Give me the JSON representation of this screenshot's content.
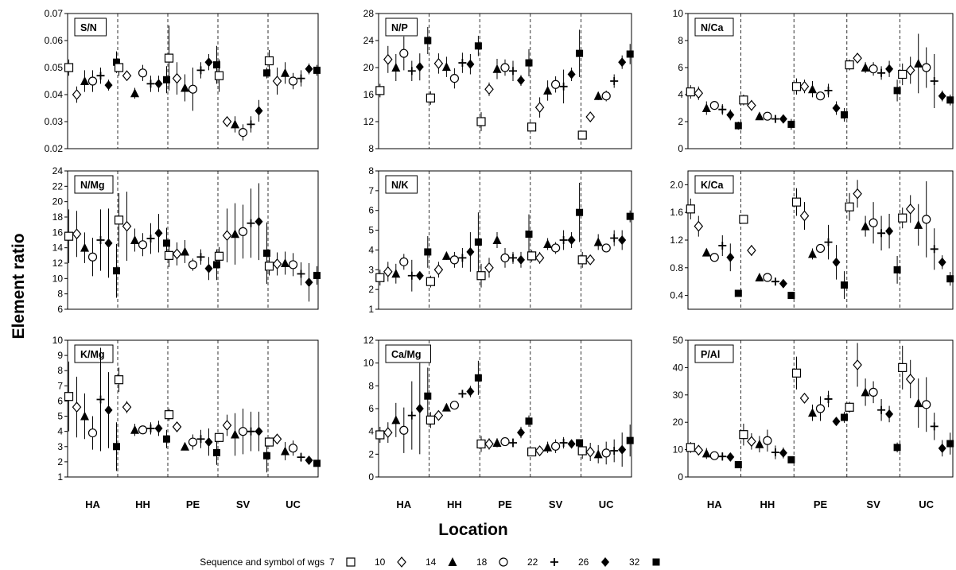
{
  "figure": {
    "ylabel": "Element ratio",
    "xlabel": "Location",
    "legend_title": "Sequence and symbol of wgs"
  },
  "legend": [
    {
      "label": "7",
      "marker": "square-open"
    },
    {
      "label": "10",
      "marker": "diamond-open"
    },
    {
      "label": "14",
      "marker": "triangle-filled"
    },
    {
      "label": "18",
      "marker": "circle-open"
    },
    {
      "label": "22",
      "marker": "plus"
    },
    {
      "label": "26",
      "marker": "diamond-filled"
    },
    {
      "label": "32",
      "marker": "square-filled"
    }
  ],
  "chart_data": [
    {
      "type": "scatter",
      "title": "S/N",
      "categories": [
        "HA",
        "HH",
        "PE",
        "SV",
        "UC"
      ],
      "ylim": [
        0.02,
        0.07
      ],
      "yticks": [
        "0.02",
        "0.03",
        "0.04",
        "0.05",
        "0.06",
        "0.07"
      ],
      "show_xlabels": false,
      "values": [
        [
          0.05,
          0.04,
          0.045,
          0.045,
          0.047,
          0.0435,
          0.052
        ],
        [
          0.05,
          0.047,
          0.0405,
          0.048,
          0.044,
          0.044,
          0.0455
        ],
        [
          0.0535,
          0.046,
          0.0425,
          0.042,
          0.049,
          0.052,
          0.051
        ],
        [
          0.047,
          0.03,
          0.029,
          0.026,
          0.029,
          0.034,
          0.048
        ],
        [
          0.0525,
          0.045,
          0.048,
          0.045,
          0.046,
          0.0495,
          0.049
        ]
      ],
      "errors": [
        [
          0.003,
          0.003,
          0.004,
          0.004,
          0.003,
          0.002,
          0.004
        ],
        [
          0.003,
          0.001,
          0.002,
          0.003,
          0.003,
          0.003,
          0.005
        ],
        [
          0.012,
          0.006,
          0.005,
          0.008,
          0.003,
          0.003,
          0.007
        ],
        [
          0.006,
          0.002,
          0.003,
          0.003,
          0.003,
          0.004,
          0.002
        ],
        [
          0.004,
          0.005,
          0.004,
          0.003,
          0.003,
          0.002,
          0.002
        ]
      ]
    },
    {
      "type": "scatter",
      "title": "N/P",
      "categories": [
        "HA",
        "HH",
        "PE",
        "SV",
        "UC"
      ],
      "ylim": [
        8,
        28
      ],
      "yticks": [
        "8",
        "12",
        "16",
        "20",
        "24",
        "28"
      ],
      "show_xlabels": false,
      "values": [
        [
          16.6,
          21.2,
          20.0,
          22.1,
          19.5,
          20.1,
          24.0
        ],
        [
          15.5,
          20.6,
          20.1,
          18.4,
          20.7,
          20.5,
          23.2
        ],
        [
          12.0,
          16.8,
          19.8,
          20.0,
          19.5,
          18.1,
          20.7
        ],
        [
          11.2,
          14.1,
          16.6,
          17.5,
          17.2,
          19.0,
          22.1
        ],
        [
          10.0,
          12.7,
          15.8,
          15.8,
          18.0,
          20.8,
          22.0
        ]
      ],
      "errors": [
        [
          1,
          2,
          2,
          2.5,
          1.5,
          2,
          2
        ],
        [
          1,
          1.5,
          1.5,
          1.5,
          1.5,
          1.5,
          1.5
        ],
        [
          1.4,
          1,
          1.5,
          1.2,
          1.5,
          0.8,
          2
        ],
        [
          0.5,
          1.5,
          1.5,
          1.2,
          2.5,
          1,
          3.5
        ],
        [
          0.5,
          0.5,
          0.6,
          0.8,
          1,
          1,
          1.5
        ]
      ]
    },
    {
      "type": "scatter",
      "title": "N/Ca",
      "categories": [
        "HA",
        "HH",
        "PE",
        "SV",
        "UC"
      ],
      "ylim": [
        0,
        10
      ],
      "yticks": [
        "0",
        "2",
        "4",
        "6",
        "8",
        "10"
      ],
      "show_xlabels": false,
      "values": [
        [
          4.2,
          4.1,
          3.0,
          3.2,
          2.9,
          2.5,
          1.7
        ],
        [
          3.6,
          3.2,
          2.4,
          2.4,
          2.2,
          2.2,
          1.8
        ],
        [
          4.6,
          4.6,
          4.4,
          3.9,
          4.3,
          3.0,
          2.5
        ],
        [
          6.2,
          6.7,
          6.0,
          5.9,
          5.6,
          5.9,
          4.3
        ],
        [
          5.5,
          5.8,
          6.3,
          6.0,
          5.0,
          3.9,
          3.6
        ]
      ],
      "errors": [
        [
          0.5,
          0.5,
          0.5,
          0.3,
          0.4,
          0.4,
          0.3
        ],
        [
          0.4,
          0.4,
          0.2,
          0.2,
          0.2,
          0.2,
          0.4
        ],
        [
          0.6,
          0.5,
          0.6,
          0.3,
          0.5,
          0.5,
          0.5
        ],
        [
          0.4,
          0.2,
          0.4,
          0.5,
          0.5,
          0.6,
          0.8
        ],
        [
          0.8,
          1.0,
          2.2,
          1.5,
          2.0,
          0.4,
          0.4
        ]
      ]
    },
    {
      "type": "scatter",
      "title": "N/Mg",
      "categories": [
        "HA",
        "HH",
        "PE",
        "SV",
        "UC"
      ],
      "ylim": [
        6,
        24
      ],
      "yticks": [
        "6",
        "8",
        "10",
        "12",
        "14",
        "16",
        "18",
        "20",
        "22",
        "24"
      ],
      "show_xlabels": false,
      "values": [
        [
          15.5,
          15.8,
          14.0,
          12.8,
          15.0,
          14.6,
          11.0
        ],
        [
          17.6,
          16.8,
          15.0,
          14.4,
          15.2,
          15.9,
          14.6
        ],
        [
          13.0,
          13.2,
          13.5,
          11.8,
          12.8,
          11.3,
          11.8
        ],
        [
          12.9,
          15.6,
          15.8,
          16.1,
          17.2,
          17.4,
          13.3
        ],
        [
          11.6,
          11.9,
          12.0,
          11.8,
          10.6,
          9.5,
          10.4
        ]
      ],
      "errors": [
        [
          3.5,
          3,
          2,
          2.5,
          4,
          4.5,
          3.5
        ],
        [
          3.5,
          4.5,
          1.5,
          1.5,
          2,
          2.5,
          2
        ],
        [
          1.5,
          1.5,
          1.5,
          0.8,
          1,
          1.5,
          2
        ],
        [
          1.2,
          3.5,
          4,
          3.5,
          4.5,
          5,
          4
        ],
        [
          1.2,
          1.5,
          1.5,
          1.5,
          1.5,
          2.5,
          1.2
        ]
      ]
    },
    {
      "type": "scatter",
      "title": "N/K",
      "categories": [
        "HA",
        "HH",
        "PE",
        "SV",
        "UC"
      ],
      "ylim": [
        1,
        8
      ],
      "yticks": [
        "1",
        "2",
        "3",
        "4",
        "5",
        "6",
        "7",
        "8"
      ],
      "show_xlabels": false,
      "values": [
        [
          2.6,
          2.9,
          2.8,
          3.4,
          2.7,
          2.7,
          3.9
        ],
        [
          2.4,
          3.0,
          3.7,
          3.5,
          3.6,
          3.9,
          4.4
        ],
        [
          2.7,
          3.1,
          4.5,
          3.6,
          3.6,
          3.5,
          4.8
        ],
        [
          3.7,
          3.6,
          4.3,
          4.1,
          4.5,
          4.5,
          5.9
        ],
        [
          3.5,
          3.5,
          4.4,
          4.1,
          4.6,
          4.5,
          5.7
        ]
      ],
      "errors": [
        [
          0.4,
          0.5,
          0.5,
          0.4,
          0.8,
          0.2,
          0.8
        ],
        [
          0.3,
          0.4,
          0.2,
          0.4,
          0.5,
          1,
          1.5
        ],
        [
          0.6,
          0.5,
          0.4,
          0.5,
          0.3,
          0.4,
          1
        ],
        [
          0.3,
          0.3,
          0.3,
          0.3,
          0.5,
          0.4,
          1.5
        ],
        [
          0.4,
          0.2,
          0.4,
          0.2,
          0.4,
          0.5,
          0.3
        ]
      ]
    },
    {
      "type": "scatter",
      "title": "K/Ca",
      "categories": [
        "HA",
        "HH",
        "PE",
        "SV",
        "UC"
      ],
      "ylim": [
        0.2,
        2.2
      ],
      "yticks": [
        "0.4",
        "0.8",
        "1.2",
        "1.6",
        "2.0"
      ],
      "show_xlabels": false,
      "values": [
        [
          1.65,
          1.4,
          1.02,
          0.95,
          1.12,
          0.95,
          0.43
        ],
        [
          1.5,
          1.05,
          0.66,
          0.66,
          0.6,
          0.57,
          0.4
        ],
        [
          1.75,
          1.55,
          1.0,
          1.08,
          1.17,
          0.88,
          0.55
        ],
        [
          1.68,
          1.87,
          1.4,
          1.45,
          1.3,
          1.33,
          0.77
        ],
        [
          1.52,
          1.65,
          1.42,
          1.5,
          1.07,
          0.88,
          0.64
        ]
      ],
      "errors": [
        [
          0.15,
          0.15,
          0.05,
          0.03,
          0.15,
          0.2,
          0.05
        ],
        [
          0.05,
          0.08,
          0.03,
          0.03,
          0.03,
          0.03,
          0.02
        ],
        [
          0.2,
          0.2,
          0.08,
          0.05,
          0.25,
          0.25,
          0.2
        ],
        [
          0.2,
          0.2,
          0.15,
          0.3,
          0.25,
          0.25,
          0.2
        ],
        [
          0.15,
          0.2,
          0.3,
          0.55,
          0.3,
          0.1,
          0.1
        ]
      ]
    },
    {
      "type": "scatter",
      "title": "K/Mg",
      "categories": [
        "HA",
        "HH",
        "PE",
        "SV",
        "UC"
      ],
      "ylim": [
        1,
        10
      ],
      "yticks": [
        "1",
        "2",
        "3",
        "4",
        "5",
        "6",
        "7",
        "8",
        "9",
        "10"
      ],
      "show_xlabels": true,
      "values": [
        [
          6.3,
          5.6,
          5.0,
          3.9,
          6.1,
          5.4,
          3.0
        ],
        [
          7.4,
          5.6,
          4.1,
          4.1,
          4.2,
          4.2,
          3.5
        ],
        [
          5.1,
          4.3,
          3.0,
          3.3,
          3.5,
          3.3,
          2.6
        ],
        [
          3.6,
          4.4,
          3.8,
          4.0,
          4.0,
          4.0,
          2.4
        ],
        [
          3.3,
          3.5,
          2.7,
          2.9,
          2.3,
          2.1,
          1.9
        ]
      ],
      "errors": [
        [
          2.3,
          2,
          1.5,
          1.1,
          3.4,
          2.5,
          1.6
        ],
        [
          0.8,
          0.4,
          0.4,
          0.2,
          0.4,
          0.5,
          0.6
        ],
        [
          0.4,
          0.3,
          0.1,
          0.5,
          0.6,
          0.9,
          0.8
        ],
        [
          0.3,
          0.7,
          1.4,
          1.5,
          1.3,
          1.3,
          1.1
        ],
        [
          0.3,
          0.3,
          0.6,
          0.5,
          0.3,
          0.2,
          0.2
        ]
      ]
    },
    {
      "type": "scatter",
      "title": "Ca/Mg",
      "categories": [
        "HA",
        "HH",
        "PE",
        "SV",
        "UC"
      ],
      "ylim": [
        0,
        12
      ],
      "yticks": [
        "0",
        "2",
        "4",
        "6",
        "8",
        "10",
        "12"
      ],
      "show_xlabels": true,
      "values": [
        [
          3.7,
          3.9,
          5.0,
          4.1,
          5.4,
          6.0,
          7.1
        ],
        [
          5.0,
          5.4,
          6.1,
          6.3,
          7.3,
          7.5,
          8.7
        ],
        [
          2.9,
          2.9,
          3.0,
          3.1,
          3.0,
          3.9,
          4.9
        ],
        [
          2.2,
          2.3,
          2.6,
          2.7,
          3.0,
          2.9,
          3.0
        ],
        [
          2.3,
          2.2,
          2.0,
          2.1,
          2.3,
          2.4,
          3.2
        ]
      ],
      "errors": [
        [
          0.7,
          0.9,
          1.5,
          2,
          3,
          4,
          2.5
        ],
        [
          0.7,
          0.3,
          0.2,
          0.3,
          0.3,
          0.5,
          1.5
        ],
        [
          0.7,
          0.5,
          0.4,
          0.3,
          0.4,
          0.5,
          0.5
        ],
        [
          0.3,
          0.3,
          0.5,
          0.6,
          0.5,
          0.4,
          0.3
        ],
        [
          0.7,
          0.8,
          0.8,
          1,
          1,
          1.5,
          1.4
        ]
      ]
    },
    {
      "type": "scatter",
      "title": "P/Al",
      "categories": [
        "HA",
        "HH",
        "PE",
        "SV",
        "UC"
      ],
      "ylim": [
        0,
        50
      ],
      "yticks": [
        "0",
        "10",
        "20",
        "30",
        "40",
        "50"
      ],
      "show_xlabels": true,
      "values": [
        [
          10.8,
          9.8,
          8.6,
          7.8,
          7.5,
          7.3,
          4.5
        ],
        [
          15.5,
          13.0,
          12.0,
          13.3,
          9.0,
          8.8,
          6.3
        ],
        [
          38.0,
          28.8,
          23.5,
          25.0,
          28.5,
          20.3,
          21.8
        ],
        [
          25.5,
          41.0,
          31.0,
          31.0,
          24.5,
          23.0,
          10.8
        ],
        [
          40.0,
          35.8,
          27.0,
          26.5,
          18.5,
          10.5,
          12.2
        ]
      ],
      "errors": [
        [
          2,
          1,
          2,
          1.5,
          1.5,
          1,
          0.8
        ],
        [
          4,
          3,
          3,
          4,
          2.5,
          2,
          1.2
        ],
        [
          6,
          1,
          3,
          4.5,
          3,
          0.8,
          2
        ],
        [
          2,
          8,
          5,
          4,
          4,
          3,
          1.8
        ],
        [
          8,
          7,
          9,
          10,
          5,
          3,
          4
        ]
      ]
    }
  ]
}
